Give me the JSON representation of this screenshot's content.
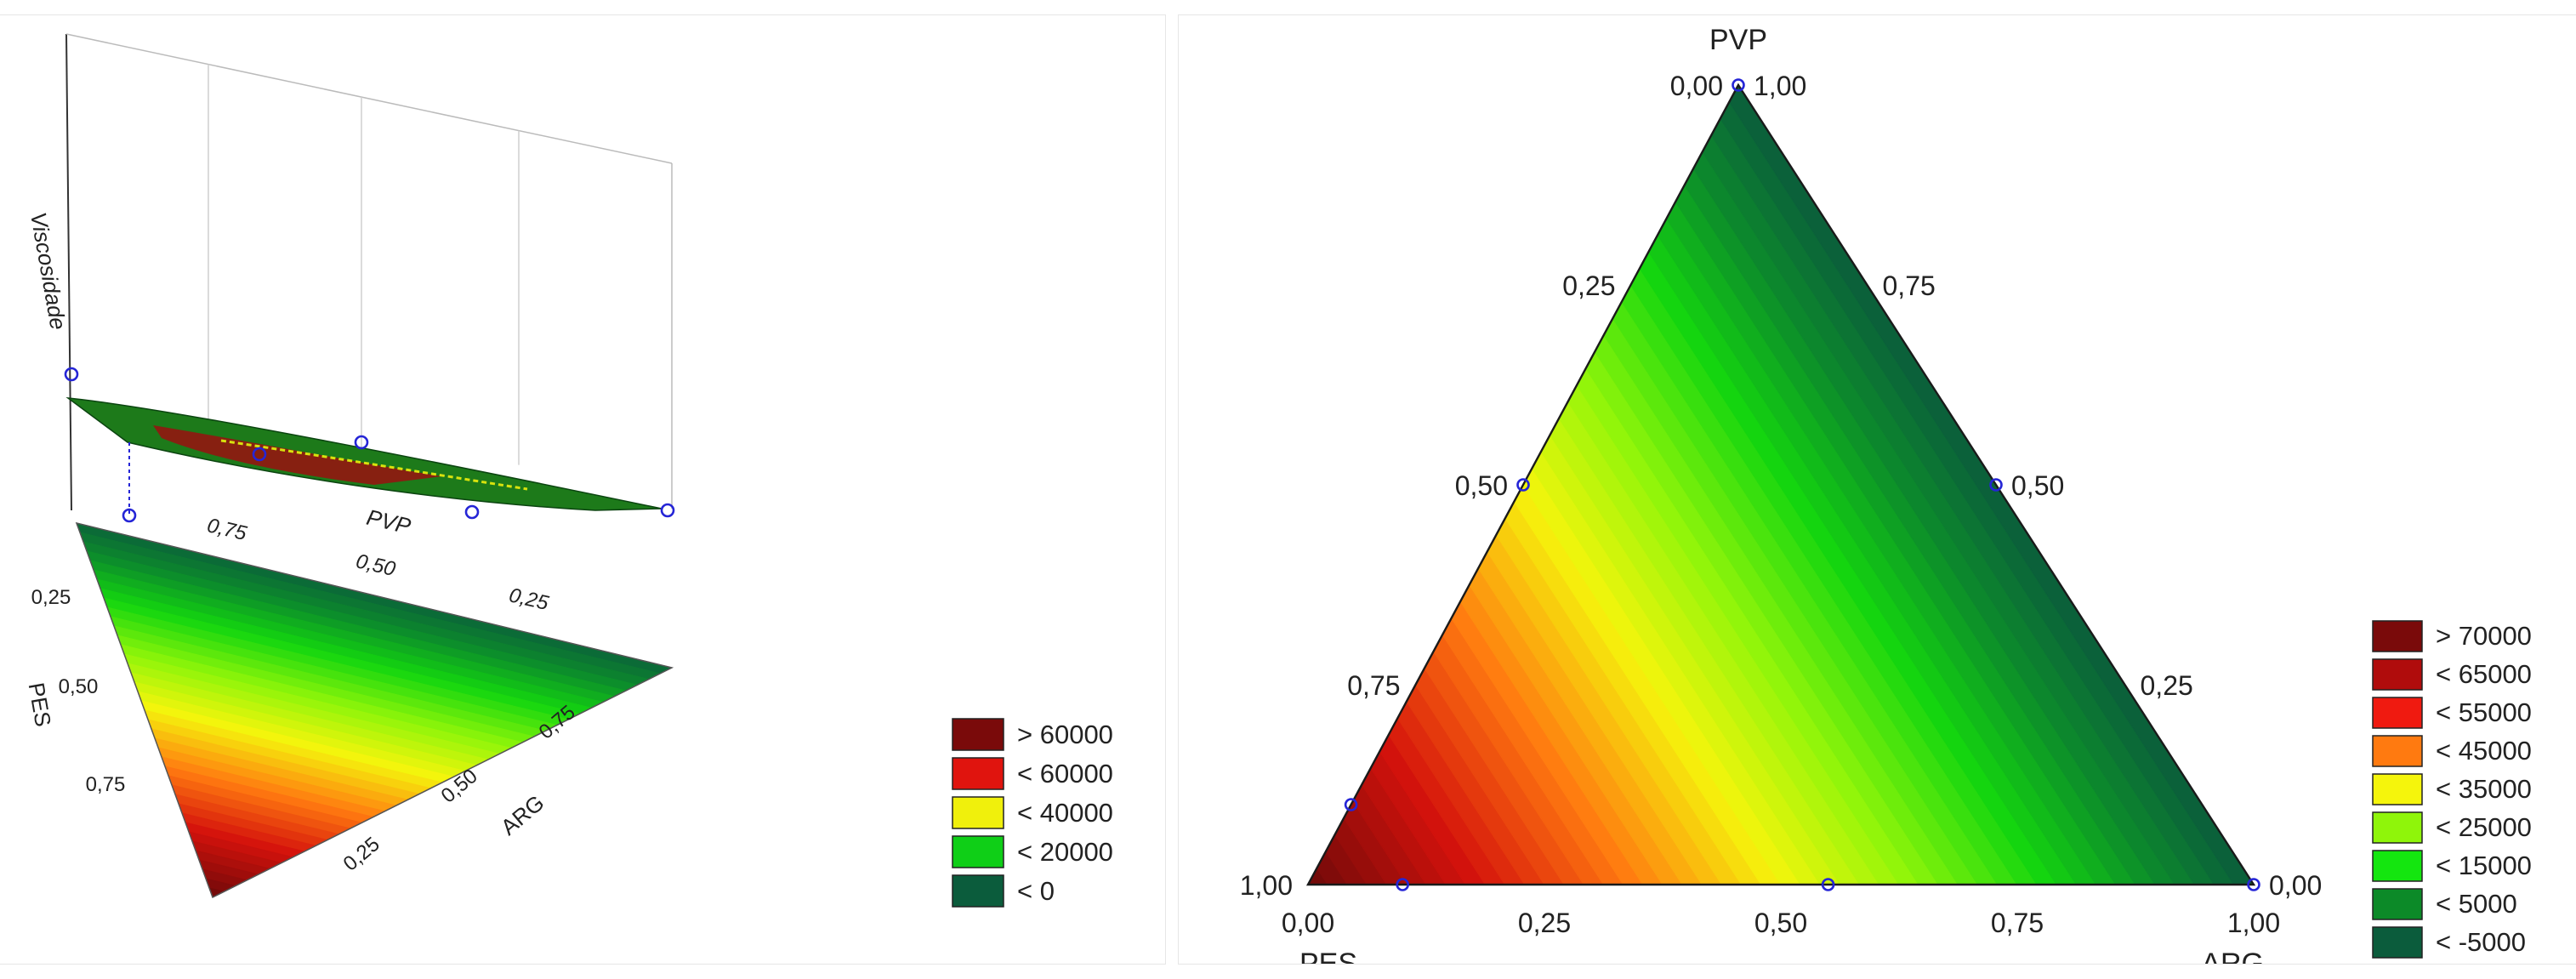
{
  "chart_data": [
    {
      "type": "surface3d",
      "zlabel": "Viscosidade",
      "components": [
        "PVP",
        "PES",
        "ARG"
      ],
      "pvp_axis_ticks": [
        "0,75",
        "0,50",
        "0,25"
      ],
      "pes_axis_ticks": [
        "0,25",
        "0,50",
        "0,75"
      ],
      "arg_axis_ticks": [
        "0,25",
        "0,50",
        "0,75"
      ],
      "legend": [
        {
          "label": "> 60000",
          "color": "#7a0a0a"
        },
        {
          "label": "< 60000",
          "color": "#e0140e"
        },
        {
          "label": "< 40000",
          "color": "#f0f00c"
        },
        {
          "label": "< 20000",
          "color": "#0fcf17"
        },
        {
          "label": "< 0",
          "color": "#0b5c3c"
        }
      ],
      "grid": true
    },
    {
      "type": "ternary_contour",
      "vertex_labels": {
        "top": "PVP",
        "left": "PES",
        "right": "ARG"
      },
      "bottom_ticks": [
        "0,00",
        "0,25",
        "0,50",
        "0,75",
        "1,00"
      ],
      "left_ticks": [
        "1,00",
        "0,75",
        "0,50",
        "0,25",
        "0,00"
      ],
      "right_ticks": [
        "1,00",
        "0,75",
        "0,50",
        "0,25",
        "0,00"
      ],
      "design_points": [
        {
          "PES": 0.0,
          "ARG": 0.0,
          "PVP": 1.0
        },
        {
          "PES": 0.5,
          "ARG": 0.0,
          "PVP": 0.5
        },
        {
          "PES": 0.0,
          "ARG": 0.5,
          "PVP": 0.5
        },
        {
          "PES": 0.9,
          "ARG": 0.0,
          "PVP": 0.1
        },
        {
          "PES": 0.9,
          "ARG": 0.1,
          "PVP": 0.0
        },
        {
          "PES": 0.45,
          "ARG": 0.55,
          "PVP": 0.0
        },
        {
          "PES": 0.0,
          "ARG": 1.0,
          "PVP": 0.0
        }
      ],
      "legend": [
        {
          "label": "> 70000",
          "color": "#7a0a0a"
        },
        {
          "label": "< 65000",
          "color": "#b00c0c"
        },
        {
          "label": "< 55000",
          "color": "#f01a10"
        },
        {
          "label": "< 45000",
          "color": "#ff7a10"
        },
        {
          "label": "< 35000",
          "color": "#f5f50c"
        },
        {
          "label": "< 25000",
          "color": "#8ff50a"
        },
        {
          "label": "< 15000",
          "color": "#14e60f"
        },
        {
          "label": "< 5000",
          "color": "#0c8a28"
        },
        {
          "label": "< -5000",
          "color": "#0b5c3c"
        }
      ]
    }
  ]
}
